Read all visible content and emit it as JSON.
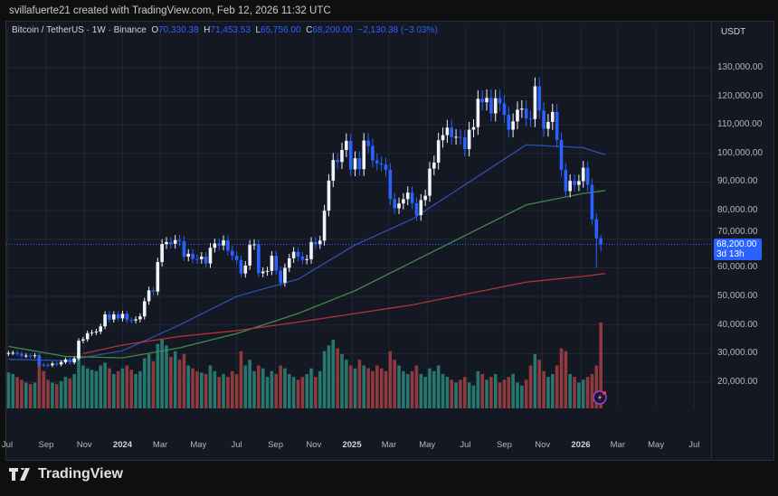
{
  "credit": "svillafuerte21 created with TradingView.com, Feb 12, 2026 11:32 UTC",
  "legend": {
    "symbol": "Bitcoin / TetherUS · 1W · Binance",
    "o_label": "O",
    "o": "70,330.38",
    "h_label": "H",
    "h": "71,453.53",
    "l_label": "L",
    "l": "65,756.00",
    "c_label": "C",
    "c": "68,200.00",
    "change": "−2,130.38 (−3.03%)"
  },
  "currency": "USDT",
  "price_tag": {
    "price": "68,200.00",
    "countdown": "3d 13h"
  },
  "brand": "TradingView",
  "colors": {
    "up": "#f0f3fa",
    "down": "#2962ff",
    "vol_up": "#26786f",
    "vol_down": "#8e3a3f",
    "ma_blue": "#2f4fb0",
    "ma_green": "#3f8a4a",
    "ma_red": "#b2343c",
    "bg": "#141823"
  },
  "chart_data": {
    "type": "candlestick",
    "interval": "1W",
    "first_week": "2023-07-03",
    "ylim": [
      10000,
      140000
    ],
    "y_ticks": [
      "20,000.00",
      "30,000.00",
      "40,000.00",
      "50,000.00",
      "60,000.00",
      "70,000.00",
      "80,000.00",
      "90,000.00",
      "100,000.00",
      "110,000.00",
      "120,000.00",
      "130,000.00"
    ],
    "y_tick_values": [
      20000,
      30000,
      40000,
      50000,
      60000,
      70000,
      80000,
      90000,
      100000,
      110000,
      120000,
      130000
    ],
    "x_ticks": [
      {
        "label": "Jul",
        "date": "2023-07-01"
      },
      {
        "label": "Sep",
        "date": "2023-09-01"
      },
      {
        "label": "Nov",
        "date": "2023-11-01"
      },
      {
        "label": "2024",
        "date": "2024-01-01",
        "year": true
      },
      {
        "label": "Mar",
        "date": "2024-03-01"
      },
      {
        "label": "May",
        "date": "2024-05-01"
      },
      {
        "label": "Jul",
        "date": "2024-07-01"
      },
      {
        "label": "Sep",
        "date": "2024-09-01"
      },
      {
        "label": "Nov",
        "date": "2024-11-01"
      },
      {
        "label": "2025",
        "date": "2025-01-01",
        "year": true
      },
      {
        "label": "Mar",
        "date": "2025-03-01"
      },
      {
        "label": "May",
        "date": "2025-05-01"
      },
      {
        "label": "Jul",
        "date": "2025-07-01"
      },
      {
        "label": "Sep",
        "date": "2025-09-01"
      },
      {
        "label": "Nov",
        "date": "2025-11-01"
      },
      {
        "label": "2026",
        "date": "2026-01-01",
        "year": true
      },
      {
        "label": "Mar",
        "date": "2026-03-01"
      },
      {
        "label": "May",
        "date": "2026-05-01"
      },
      {
        "label": "Jul",
        "date": "2026-07-01"
      }
    ],
    "grid": true,
    "closes": [
      30200,
      30300,
      29900,
      29200,
      29300,
      29100,
      29400,
      26100,
      26000,
      25900,
      26500,
      26200,
      27000,
      27900,
      26900,
      28300,
      34500,
      35000,
      37100,
      37400,
      37700,
      39500,
      43700,
      41900,
      43700,
      42300,
      43900,
      41700,
      41600,
      42000,
      43000,
      48300,
      52100,
      51700,
      62000,
      68300,
      69000,
      68400,
      69700,
      69300,
      63900,
      64900,
      63100,
      63000,
      63900,
      61500,
      67000,
      68500,
      67800,
      69600,
      66000,
      64200,
      62700,
      58000,
      60800,
      68000,
      68200,
      58100,
      58700,
      58900,
      64200,
      59000,
      54800,
      60000,
      63300,
      65600,
      63900,
      62800,
      63000,
      69000,
      68300,
      69500,
      80000,
      90500,
      97700,
      97000,
      101200,
      104400,
      94400,
      98300,
      94500,
      104500,
      102600,
      97500,
      96500,
      96100,
      94300,
      84000,
      80800,
      82500,
      84000,
      86300,
      82600,
      78400,
      83700,
      85200,
      94700,
      96800,
      104600,
      106400,
      109000,
      105700,
      105800,
      105600,
      101500,
      108300,
      109200,
      119100,
      117900,
      119400,
      114000,
      119300,
      117500,
      113500,
      108300,
      111200,
      115300,
      115700,
      112200,
      112000,
      123500,
      115000,
      108600,
      111000,
      114500,
      104700,
      94200,
      86800,
      90400,
      89000,
      90300,
      95000,
      89000,
      77000,
      70300,
      68200
    ],
    "last_candle": {
      "open": 70330.38,
      "high": 71453.53,
      "low": 65756.0,
      "close": 68200.0
    },
    "moving_averages": [
      {
        "color": "ma_blue",
        "points": [
          [
            "2023-07-03",
            28000
          ],
          [
            "2023-10-02",
            27500
          ],
          [
            "2024-01-01",
            31000
          ],
          [
            "2024-04-01",
            40000
          ],
          [
            "2024-07-01",
            50000
          ],
          [
            "2024-10-07",
            56000
          ],
          [
            "2025-01-06",
            68000
          ],
          [
            "2025-04-07",
            77000
          ],
          [
            "2025-07-07",
            90000
          ],
          [
            "2025-10-06",
            103000
          ],
          [
            "2026-01-05",
            102000
          ],
          [
            "2026-02-09",
            99500
          ]
        ]
      },
      {
        "color": "ma_green",
        "points": [
          [
            "2023-07-03",
            32500
          ],
          [
            "2023-10-02",
            29000
          ],
          [
            "2024-01-01",
            28500
          ],
          [
            "2024-04-01",
            32000
          ],
          [
            "2024-07-01",
            37000
          ],
          [
            "2024-10-07",
            44000
          ],
          [
            "2025-01-06",
            52000
          ],
          [
            "2025-04-07",
            62000
          ],
          [
            "2025-07-07",
            72000
          ],
          [
            "2025-10-06",
            82000
          ],
          [
            "2026-01-05",
            86000
          ],
          [
            "2026-02-09",
            87000
          ]
        ]
      },
      {
        "color": "ma_red",
        "points": [
          [
            "2023-10-30",
            30000
          ],
          [
            "2024-01-01",
            33000
          ],
          [
            "2024-04-01",
            36000
          ],
          [
            "2024-07-01",
            38000
          ],
          [
            "2024-10-07",
            41000
          ],
          [
            "2025-01-06",
            44000
          ],
          [
            "2025-04-07",
            47000
          ],
          [
            "2025-07-07",
            51000
          ],
          [
            "2025-10-06",
            55000
          ],
          [
            "2026-01-05",
            57000
          ],
          [
            "2026-02-09",
            58000
          ]
        ]
      }
    ],
    "volume": [
      25,
      24,
      22,
      20,
      18,
      17,
      18,
      32,
      26,
      20,
      18,
      17,
      19,
      22,
      21,
      24,
      38,
      30,
      28,
      27,
      26,
      30,
      32,
      28,
      24,
      26,
      28,
      30,
      27,
      24,
      26,
      35,
      38,
      33,
      45,
      48,
      44,
      36,
      40,
      34,
      38,
      30,
      28,
      26,
      25,
      24,
      30,
      26,
      22,
      24,
      22,
      26,
      24,
      40,
      30,
      34,
      26,
      30,
      28,
      22,
      26,
      24,
      30,
      28,
      24,
      22,
      20,
      22,
      24,
      28,
      22,
      26,
      40,
      44,
      48,
      42,
      38,
      34,
      30,
      28,
      34,
      30,
      28,
      26,
      30,
      28,
      26,
      40,
      34,
      30,
      26,
      24,
      26,
      30,
      24,
      22,
      28,
      26,
      30,
      24,
      22,
      20,
      18,
      20,
      22,
      18,
      16,
      26,
      24,
      20,
      22,
      24,
      18,
      20,
      22,
      24,
      18,
      16,
      20,
      30,
      38,
      34,
      26,
      22,
      24,
      30,
      42,
      40,
      24,
      22,
      18,
      20,
      22,
      24,
      30,
      60
    ]
  }
}
